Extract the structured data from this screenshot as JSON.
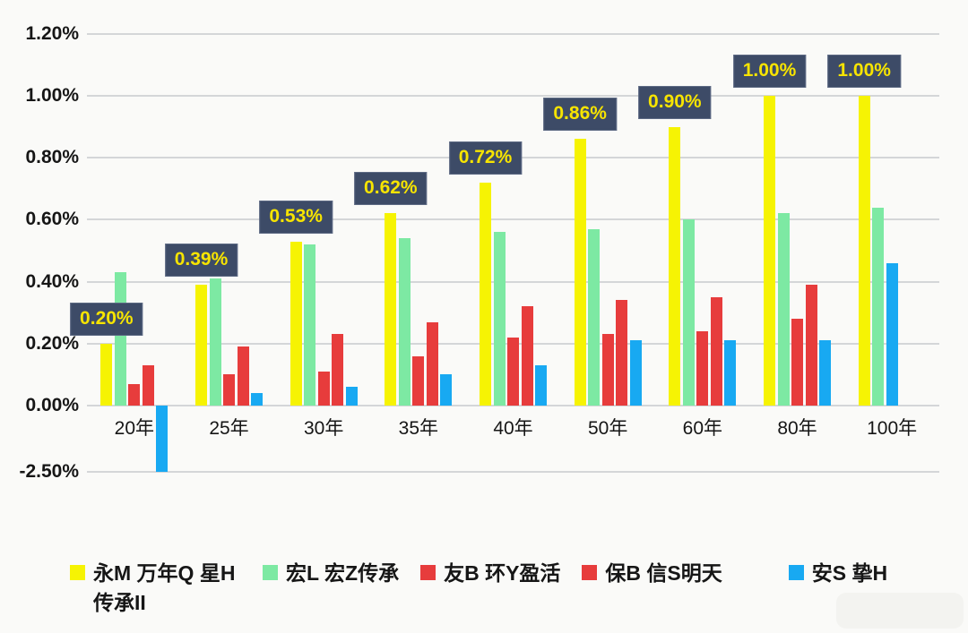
{
  "chart_data": {
    "type": "bar",
    "title": "",
    "categories": [
      "20年",
      "25年",
      "30年",
      "35年",
      "40年",
      "50年",
      "60年",
      "80年",
      "100年"
    ],
    "series": [
      {
        "name": "永M 万年Q 星H传承II",
        "color": "#f6f303",
        "values": [
          0.2,
          0.39,
          0.53,
          0.62,
          0.72,
          0.86,
          0.9,
          1.0,
          1.0
        ]
      },
      {
        "name": "宏L 宏Z传承",
        "color": "#7de9a3",
        "values": [
          0.43,
          0.41,
          0.52,
          0.54,
          0.56,
          0.57,
          0.6,
          0.62,
          0.64
        ]
      },
      {
        "name": "友B 环Y盈活",
        "color": "#e73c3c",
        "values": [
          0.07,
          0.1,
          0.11,
          0.16,
          0.22,
          0.23,
          0.24,
          0.28,
          null
        ]
      },
      {
        "name": "保B 信S明天",
        "color": "#e73c3c",
        "values": [
          0.13,
          0.19,
          0.23,
          0.27,
          0.32,
          0.34,
          0.35,
          0.39,
          null
        ]
      },
      {
        "name": "安S 挚H",
        "color": "#18a9f2",
        "values": [
          -2.5,
          0.04,
          0.06,
          0.1,
          0.13,
          0.21,
          0.21,
          0.21,
          0.46
        ]
      }
    ],
    "data_labels": {
      "attached_to_series": "永M 万年Q 星H传承II",
      "values": [
        "0.20%",
        "0.39%",
        "0.53%",
        "0.62%",
        "0.72%",
        "0.86%",
        "0.90%",
        "1.00%",
        "1.00%"
      ]
    },
    "y_ticks": [
      {
        "label": "1.20%",
        "value": 1.2
      },
      {
        "label": "1.00%",
        "value": 1.0
      },
      {
        "label": "0.80%",
        "value": 0.8
      },
      {
        "label": "0.60%",
        "value": 0.6
      },
      {
        "label": "0.40%",
        "value": 0.4
      },
      {
        "label": "0.20%",
        "value": 0.2
      },
      {
        "label": "0.00%",
        "value": 0.0
      },
      {
        "label": "-2.50%",
        "value": -2.5
      }
    ],
    "axis_note": "y-axis scale is compressed below zero: the -2.50% gridline sits directly below 0.00%",
    "grid": true,
    "legend_position": "bottom",
    "colors": {
      "label_box_bg": "#3d4b67",
      "label_box_text": "#f7e400",
      "grid_line": "#d4d6d8",
      "axis_text": "#161616",
      "background": "#fafaf8"
    }
  }
}
